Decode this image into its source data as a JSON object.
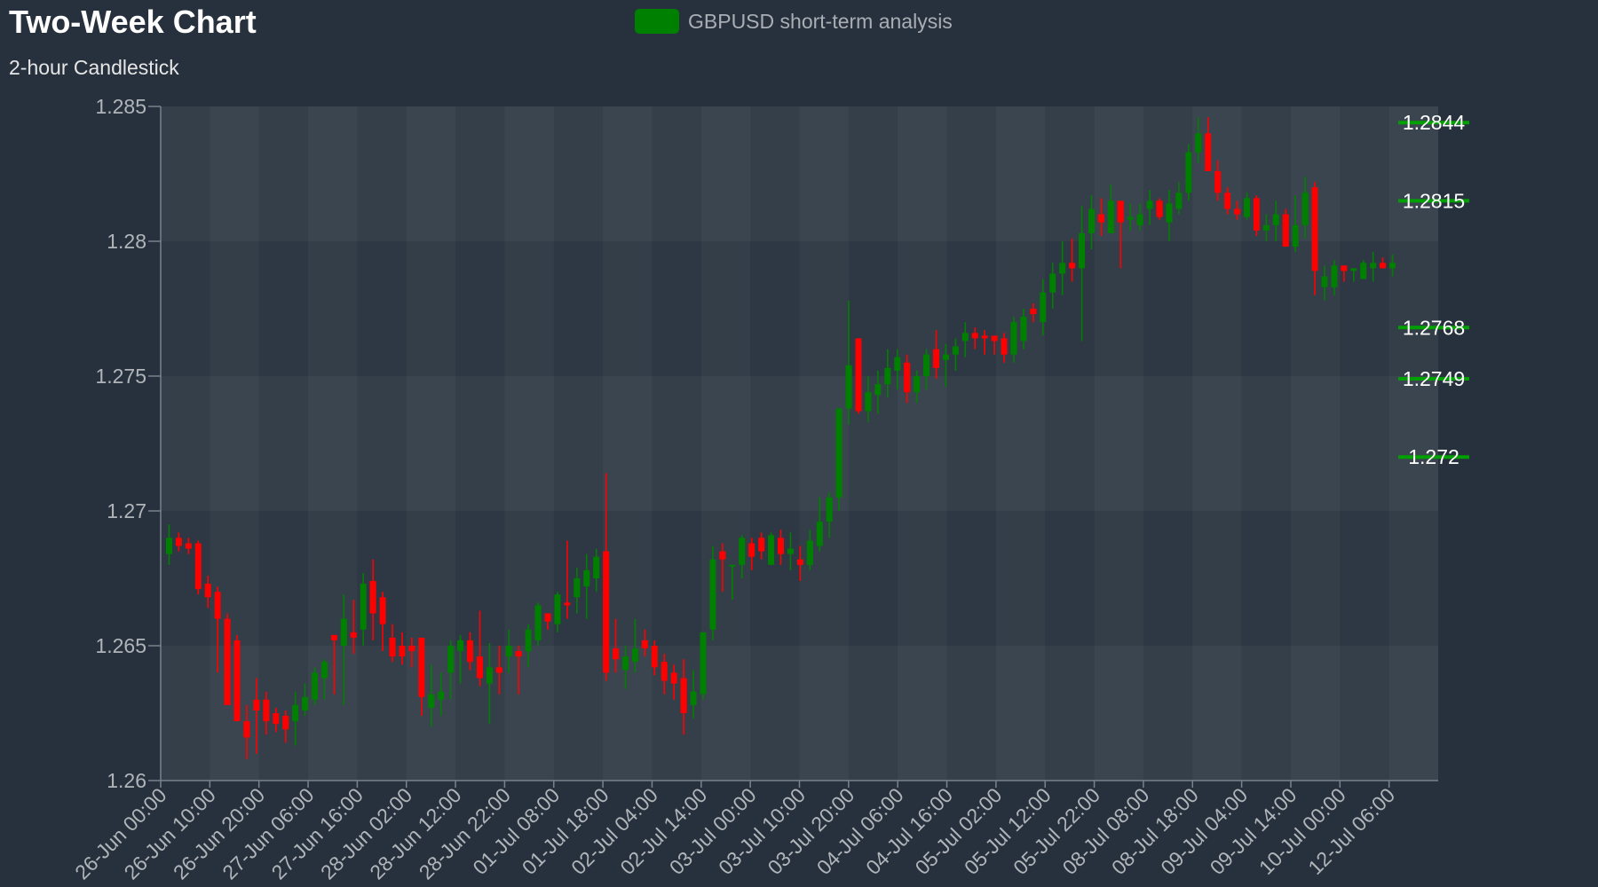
{
  "chart_data": {
    "type": "candlestick",
    "title": "Two-Week Chart",
    "subtitle": "2-hour Candlestick",
    "legend": {
      "label": "GBPUSD short-term analysis",
      "color": "#008000",
      "position": "top-center"
    },
    "ylim": [
      1.26,
      1.285
    ],
    "yticks": [
      "1.26",
      "1.265",
      "1.27",
      "1.275",
      "1.28",
      "1.285"
    ],
    "x_tick_labels": [
      "26-Jun 00:00",
      "26-Jun 10:00",
      "26-Jun 20:00",
      "27-Jun 06:00",
      "27-Jun 16:00",
      "28-Jun 02:00",
      "28-Jun 12:00",
      "28-Jun 22:00",
      "01-Jul 08:00",
      "01-Jul 18:00",
      "02-Jul 04:00",
      "02-Jul 14:00",
      "03-Jul 00:00",
      "03-Jul 10:00",
      "03-Jul 20:00",
      "04-Jul 06:00",
      "04-Jul 16:00",
      "05-Jul 02:00",
      "05-Jul 12:00",
      "05-Jul 22:00",
      "08-Jul 08:00",
      "08-Jul 18:00",
      "09-Jul 04:00",
      "09-Jul 14:00",
      "10-Jul 00:00",
      "12-Jul 06:00"
    ],
    "up_color": "#008000",
    "down_color": "#ff0000",
    "levels": [
      {
        "value": 1.2844,
        "label": "1.2844"
      },
      {
        "value": 1.2815,
        "label": "1.2815"
      },
      {
        "value": 1.2768,
        "label": "1.2768"
      },
      {
        "value": 1.2749,
        "label": "1.2749"
      },
      {
        "value": 1.272,
        "label": "1.272"
      }
    ],
    "grid": true,
    "ohlc": [
      [
        1.2684,
        1.2695,
        1.268,
        1.269
      ],
      [
        1.269,
        1.2692,
        1.2685,
        1.2687
      ],
      [
        1.2688,
        1.269,
        1.2684,
        1.2686
      ],
      [
        1.2688,
        1.2689,
        1.2669,
        1.2671
      ],
      [
        1.2673,
        1.2676,
        1.2664,
        1.2668
      ],
      [
        1.267,
        1.2672,
        1.264,
        1.266
      ],
      [
        1.266,
        1.2662,
        1.263,
        1.2628
      ],
      [
        1.2652,
        1.2654,
        1.2624,
        1.2622
      ],
      [
        1.2622,
        1.2628,
        1.2608,
        1.2616
      ],
      [
        1.263,
        1.2638,
        1.261,
        1.2626
      ],
      [
        1.263,
        1.2633,
        1.2617,
        1.2622
      ],
      [
        1.2625,
        1.2627,
        1.2618,
        1.2621
      ],
      [
        1.2624,
        1.2626,
        1.2614,
        1.2619
      ],
      [
        1.2622,
        1.2633,
        1.2613,
        1.2628
      ],
      [
        1.2626,
        1.2636,
        1.2624,
        1.2631
      ],
      [
        1.263,
        1.2642,
        1.2628,
        1.264
      ],
      [
        1.2638,
        1.2645,
        1.263,
        1.2644
      ],
      [
        1.2654,
        1.2653,
        1.2632,
        1.2652
      ],
      [
        1.265,
        1.2669,
        1.2628,
        1.266
      ],
      [
        1.2655,
        1.2667,
        1.2647,
        1.2653
      ],
      [
        1.2656,
        1.2677,
        1.265,
        1.2673
      ],
      [
        1.2674,
        1.2682,
        1.2652,
        1.2662
      ],
      [
        1.2668,
        1.267,
        1.2648,
        1.2658
      ],
      [
        1.2653,
        1.2658,
        1.2644,
        1.2646
      ],
      [
        1.265,
        1.2655,
        1.2643,
        1.2646
      ],
      [
        1.265,
        1.2653,
        1.2642,
        1.2648
      ],
      [
        1.2653,
        1.2652,
        1.2624,
        1.2631
      ],
      [
        1.2627,
        1.2643,
        1.262,
        1.2632
      ],
      [
        1.263,
        1.264,
        1.2624,
        1.2633
      ],
      [
        1.264,
        1.2652,
        1.263,
        1.265
      ],
      [
        1.2648,
        1.2654,
        1.2636,
        1.2652
      ],
      [
        1.2652,
        1.2655,
        1.2641,
        1.2644
      ],
      [
        1.2646,
        1.2663,
        1.2635,
        1.2638
      ],
      [
        1.2636,
        1.2651,
        1.2621,
        1.2642
      ],
      [
        1.2642,
        1.265,
        1.2632,
        1.264
      ],
      [
        1.2646,
        1.2656,
        1.264,
        1.265
      ],
      [
        1.2648,
        1.265,
        1.2632,
        1.2646
      ],
      [
        1.2648,
        1.2658,
        1.2642,
        1.2656
      ],
      [
        1.2652,
        1.2666,
        1.265,
        1.2665
      ],
      [
        1.2662,
        1.2662,
        1.2656,
        1.2659
      ],
      [
        1.2658,
        1.267,
        1.2655,
        1.2669
      ],
      [
        1.2666,
        1.2689,
        1.266,
        1.2665
      ],
      [
        1.2668,
        1.2679,
        1.2662,
        1.2675
      ],
      [
        1.2672,
        1.2684,
        1.266,
        1.2678
      ],
      [
        1.2675,
        1.2686,
        1.267,
        1.2683
      ],
      [
        1.2685,
        1.2714,
        1.2637,
        1.264
      ],
      [
        1.2649,
        1.266,
        1.264,
        1.2645
      ],
      [
        1.2641,
        1.265,
        1.2634,
        1.2646
      ],
      [
        1.2644,
        1.266,
        1.264,
        1.2649
      ],
      [
        1.2652,
        1.2656,
        1.2646,
        1.2649
      ],
      [
        1.265,
        1.2652,
        1.2639,
        1.2642
      ],
      [
        1.2644,
        1.2647,
        1.2632,
        1.2637
      ],
      [
        1.264,
        1.2643,
        1.263,
        1.2636
      ],
      [
        1.2638,
        1.2645,
        1.2617,
        1.2625
      ],
      [
        1.2628,
        1.2641,
        1.2623,
        1.2633
      ],
      [
        1.2632,
        1.2654,
        1.263,
        1.2655
      ],
      [
        1.2656,
        1.2687,
        1.2652,
        1.2682
      ],
      [
        1.2685,
        1.2688,
        1.267,
        1.2682
      ],
      [
        1.268,
        1.268,
        1.2667,
        1.268
      ],
      [
        1.268,
        1.2691,
        1.2675,
        1.269
      ],
      [
        1.2688,
        1.269,
        1.2678,
        1.2683
      ],
      [
        1.269,
        1.2692,
        1.2682,
        1.2685
      ],
      [
        1.268,
        1.2692,
        1.268,
        1.2691
      ],
      [
        1.269,
        1.2693,
        1.268,
        1.2684
      ],
      [
        1.2684,
        1.2692,
        1.2678,
        1.2686
      ],
      [
        1.2682,
        1.2687,
        1.2674,
        1.268
      ],
      [
        1.268,
        1.2693,
        1.2678,
        1.2689
      ],
      [
        1.2687,
        1.2705,
        1.2685,
        1.2696
      ],
      [
        1.2696,
        1.2707,
        1.269,
        1.2705
      ],
      [
        1.2705,
        1.2738,
        1.27,
        1.2738
      ],
      [
        1.2738,
        1.2778,
        1.2732,
        1.2754
      ],
      [
        1.2764,
        1.2764,
        1.2736,
        1.2737
      ],
      [
        1.2737,
        1.275,
        1.2733,
        1.2744
      ],
      [
        1.2743,
        1.2752,
        1.2736,
        1.2747
      ],
      [
        1.2747,
        1.276,
        1.2742,
        1.2753
      ],
      [
        1.2752,
        1.276,
        1.2745,
        1.2757
      ],
      [
        1.2755,
        1.2758,
        1.274,
        1.2744
      ],
      [
        1.2744,
        1.2752,
        1.274,
        1.275
      ],
      [
        1.275,
        1.276,
        1.2745,
        1.2758
      ],
      [
        1.276,
        1.2767,
        1.2749,
        1.2753
      ],
      [
        1.2756,
        1.2762,
        1.2746,
        1.2758
      ],
      [
        1.2758,
        1.2764,
        1.2752,
        1.2761
      ],
      [
        1.2763,
        1.277,
        1.2757,
        1.2766
      ],
      [
        1.2766,
        1.2768,
        1.276,
        1.2764
      ],
      [
        1.2765,
        1.2767,
        1.2758,
        1.2764
      ],
      [
        1.2765,
        1.2765,
        1.2758,
        1.2763
      ],
      [
        1.2764,
        1.2766,
        1.2755,
        1.2758
      ],
      [
        1.2758,
        1.2772,
        1.2755,
        1.277
      ],
      [
        1.2763,
        1.2775,
        1.276,
        1.2772
      ],
      [
        1.2775,
        1.2777,
        1.277,
        1.2773
      ],
      [
        1.277,
        1.2786,
        1.2765,
        1.2781
      ],
      [
        1.2781,
        1.2792,
        1.2775,
        1.2788
      ],
      [
        1.2788,
        1.28,
        1.278,
        1.2792
      ],
      [
        1.2792,
        1.2801,
        1.2785,
        1.279
      ],
      [
        1.279,
        1.2813,
        1.2763,
        1.2803
      ],
      [
        1.2803,
        1.2817,
        1.2797,
        1.2812
      ],
      [
        1.281,
        1.2816,
        1.2802,
        1.2807
      ],
      [
        1.2803,
        1.2821,
        1.2803,
        1.2815
      ],
      [
        1.2815,
        1.2815,
        1.279,
        1.2807
      ],
      [
        1.2808,
        1.2814,
        1.2804,
        1.2809
      ],
      [
        1.2806,
        1.2814,
        1.2804,
        1.281
      ],
      [
        1.2812,
        1.2819,
        1.2806,
        1.2815
      ],
      [
        1.2815,
        1.2816,
        1.2808,
        1.2809
      ],
      [
        1.2807,
        1.2819,
        1.28,
        1.2814
      ],
      [
        1.2812,
        1.2822,
        1.281,
        1.2818
      ],
      [
        1.2818,
        1.2836,
        1.2815,
        1.2833
      ],
      [
        1.2833,
        1.2846,
        1.2829,
        1.284
      ],
      [
        1.284,
        1.2846,
        1.2826,
        1.2826
      ],
      [
        1.2826,
        1.283,
        1.2815,
        1.2818
      ],
      [
        1.2818,
        1.282,
        1.281,
        1.2812
      ],
      [
        1.2812,
        1.2815,
        1.2808,
        1.281
      ],
      [
        1.2809,
        1.2818,
        1.2808,
        1.2816
      ],
      [
        1.2816,
        1.2817,
        1.2802,
        1.2804
      ],
      [
        1.2804,
        1.281,
        1.28,
        1.2806
      ],
      [
        1.2806,
        1.2815,
        1.28,
        1.281
      ],
      [
        1.281,
        1.2812,
        1.2798,
        1.2798
      ],
      [
        1.2798,
        1.2817,
        1.2796,
        1.2806
      ],
      [
        1.2806,
        1.2824,
        1.2801,
        1.2818
      ],
      [
        1.282,
        1.2822,
        1.278,
        1.2789
      ],
      [
        1.2783,
        1.2791,
        1.2778,
        1.2787
      ],
      [
        1.2783,
        1.2793,
        1.278,
        1.2791
      ],
      [
        1.2791,
        1.2791,
        1.2785,
        1.2789
      ],
      [
        1.2789,
        1.279,
        1.2785,
        1.279
      ],
      [
        1.2786,
        1.2793,
        1.2787,
        1.2792
      ],
      [
        1.279,
        1.2796,
        1.2785,
        1.2792
      ],
      [
        1.2792,
        1.2794,
        1.279,
        1.279
      ],
      [
        1.279,
        1.2795,
        1.2787,
        1.2792
      ]
    ]
  }
}
